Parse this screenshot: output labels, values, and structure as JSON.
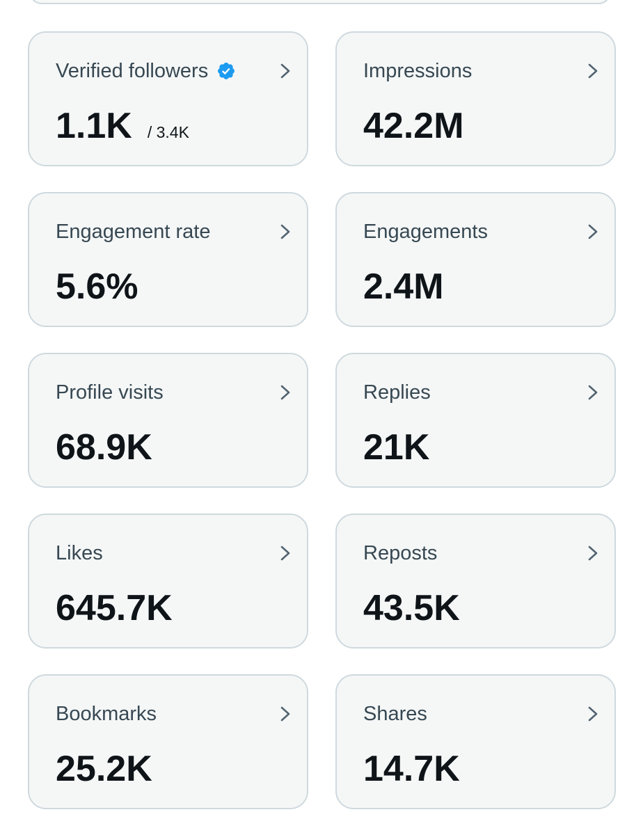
{
  "colors": {
    "card_background": "#f5f7f7",
    "card_border": "#cfd9de",
    "label_text": "#374852",
    "value_text": "#0f1419",
    "verified_badge": "#1d9bf0",
    "chevron": "#536471"
  },
  "metrics": [
    {
      "label": "Verified followers",
      "value": "1.1K",
      "secondary": "/ 3.4K",
      "icon": "verified-badge-icon"
    },
    {
      "label": "Impressions",
      "value": "42.2M"
    },
    {
      "label": "Engagement rate",
      "value": "5.6%"
    },
    {
      "label": "Engagements",
      "value": "2.4M"
    },
    {
      "label": "Profile visits",
      "value": "68.9K"
    },
    {
      "label": "Replies",
      "value": "21K"
    },
    {
      "label": "Likes",
      "value": "645.7K"
    },
    {
      "label": "Reposts",
      "value": "43.5K"
    },
    {
      "label": "Bookmarks",
      "value": "25.2K"
    },
    {
      "label": "Shares",
      "value": "14.7K"
    }
  ]
}
